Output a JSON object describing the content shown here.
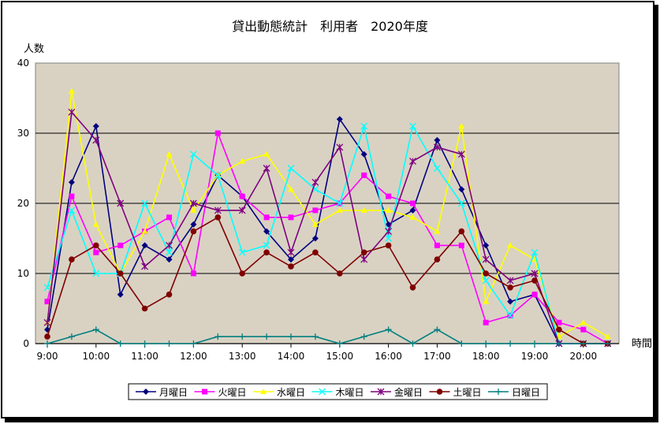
{
  "chart_data": {
    "type": "line",
    "title": "貸出動態統計　利用者　2020年度",
    "ylabel": "人数",
    "xlabel": "時間",
    "ylim": [
      0,
      40
    ],
    "yticks": [
      0,
      10,
      20,
      30,
      40
    ],
    "xticks": [
      "9:00",
      "10:00",
      "11:00",
      "12:00",
      "13:00",
      "14:00",
      "15:00",
      "16:00",
      "17:00",
      "18:00",
      "19:00",
      "20:00"
    ],
    "x": [
      "9:00",
      "9:30",
      "10:00",
      "10:30",
      "11:00",
      "11:30",
      "12:00",
      "12:30",
      "13:00",
      "13:30",
      "14:00",
      "14:30",
      "15:00",
      "15:30",
      "16:00",
      "16:30",
      "17:00",
      "17:30",
      "18:00",
      "18:30",
      "19:00",
      "19:30",
      "20:00",
      "20:30"
    ],
    "grid": "horizontal",
    "legend_position": "bottom",
    "background": "#d9d2c3",
    "series": [
      {
        "name": "月曜日",
        "color": "#00007f",
        "marker": "diamond",
        "values": [
          2,
          23,
          31,
          7,
          14,
          12,
          17,
          24,
          21,
          16,
          12,
          15,
          32,
          27,
          17,
          19,
          29,
          22,
          14,
          6,
          7,
          0,
          0,
          0
        ]
      },
      {
        "name": "火曜日",
        "color": "#ff00ff",
        "marker": "square",
        "values": [
          6,
          21,
          13,
          14,
          16,
          18,
          10,
          30,
          21,
          18,
          18,
          19,
          20,
          24,
          21,
          20,
          14,
          14,
          3,
          4,
          7,
          3,
          2,
          0
        ]
      },
      {
        "name": "水曜日",
        "color": "#ffff00",
        "marker": "triangle",
        "values": [
          3,
          36,
          17,
          10,
          16,
          27,
          19,
          24,
          26,
          27,
          22,
          17,
          19,
          19,
          19,
          18,
          16,
          31,
          6,
          14,
          12,
          1,
          3,
          1
        ]
      },
      {
        "name": "木曜日",
        "color": "#00ffff",
        "marker": "x",
        "values": [
          8,
          19,
          10,
          10,
          20,
          13,
          27,
          24,
          13,
          14,
          25,
          22,
          20,
          31,
          15,
          31,
          25,
          20,
          9,
          4,
          13,
          0,
          0,
          0
        ]
      },
      {
        "name": "金曜日",
        "color": "#7f007f",
        "marker": "star",
        "values": [
          3,
          33,
          29,
          20,
          11,
          14,
          20,
          19,
          19,
          25,
          13,
          23,
          28,
          12,
          16,
          26,
          28,
          27,
          12,
          9,
          10,
          0,
          0,
          0
        ]
      },
      {
        "name": "土曜日",
        "color": "#7f0000",
        "marker": "circle",
        "values": [
          1,
          12,
          14,
          10,
          5,
          7,
          16,
          18,
          10,
          13,
          11,
          13,
          10,
          13,
          14,
          8,
          12,
          16,
          10,
          8,
          9,
          2,
          0,
          0
        ]
      },
      {
        "name": "日曜日",
        "color": "#007f7f",
        "marker": "plus",
        "values": [
          0,
          1,
          2,
          0,
          0,
          0,
          0,
          1,
          1,
          1,
          1,
          1,
          0,
          1,
          2,
          0,
          2,
          0,
          0,
          0,
          0,
          0,
          0,
          0
        ]
      }
    ]
  }
}
